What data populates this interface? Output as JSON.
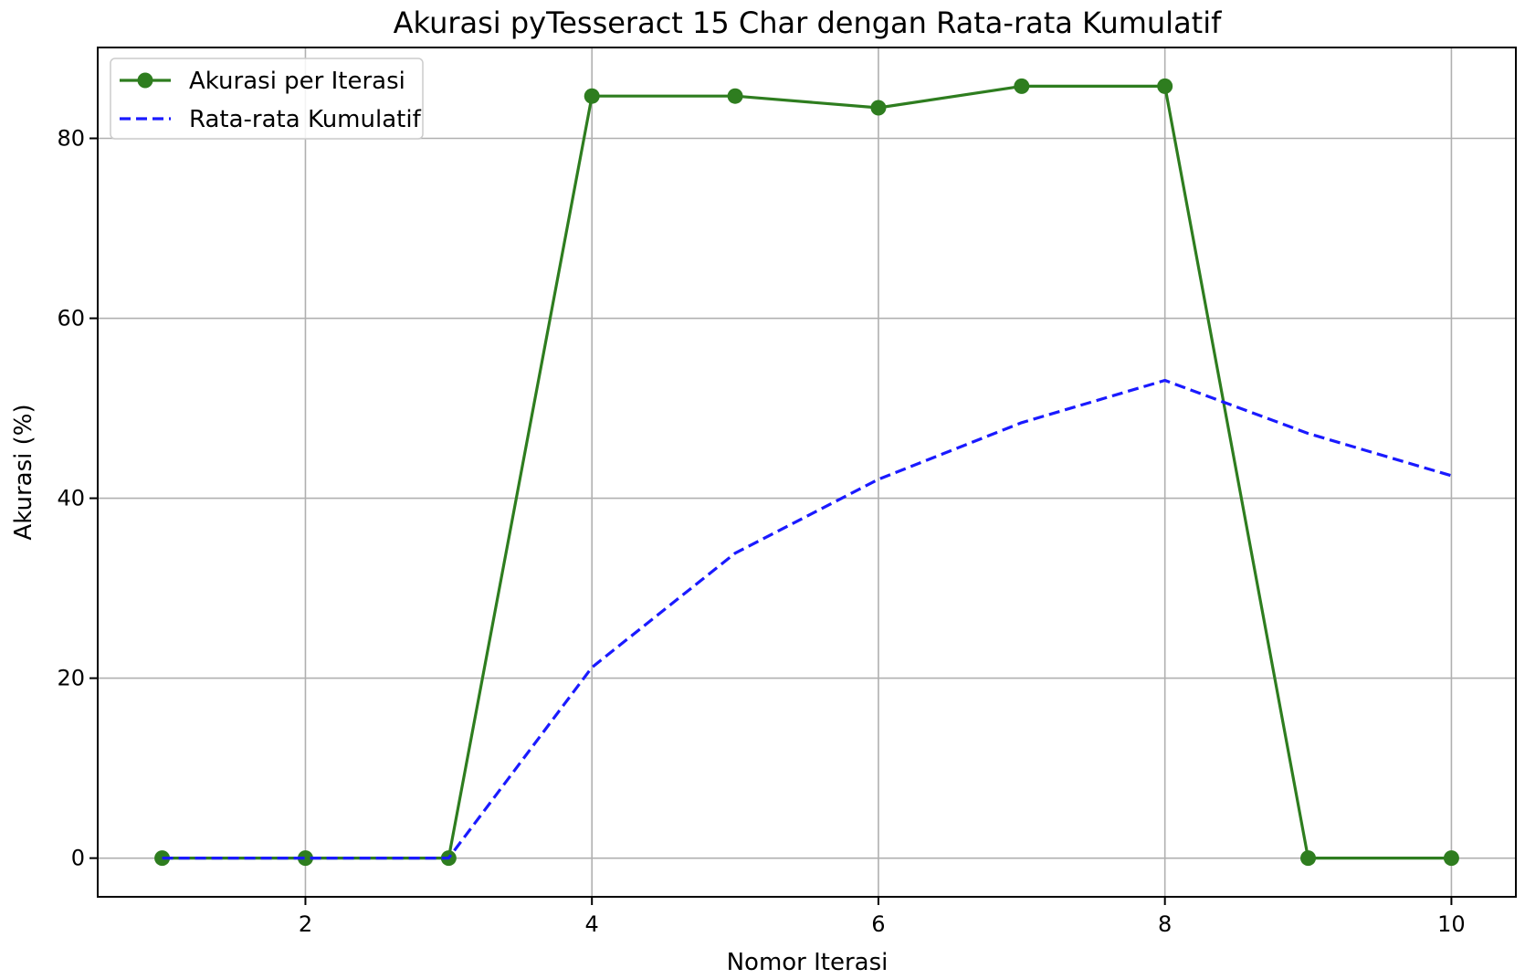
{
  "chart_data": {
    "type": "line",
    "title": "Akurasi pyTesseract 15 Char dengan Rata-rata Kumulatif",
    "xlabel": "Nomor Iterasi",
    "ylabel": "Akurasi (%)",
    "x": [
      1,
      2,
      3,
      4,
      5,
      6,
      7,
      8,
      9,
      10
    ],
    "xlim": [
      0.55,
      10.45
    ],
    "ylim": [
      -4.3,
      90.1
    ],
    "xticks": [
      2,
      4,
      6,
      8,
      10
    ],
    "yticks": [
      0,
      20,
      40,
      60,
      80
    ],
    "grid": true,
    "legend_position": "upper-left",
    "series": [
      {
        "name": "Akurasi per Iterasi",
        "color": "#2e7d1f",
        "style": "solid",
        "marker": "circle",
        "values": [
          0,
          0,
          0,
          84.7,
          84.7,
          83.4,
          85.8,
          85.8,
          0,
          0
        ]
      },
      {
        "name": "Rata-rata Kumulatif",
        "color": "#1a1aff",
        "style": "dashed",
        "marker": "none",
        "values": [
          0,
          0,
          0,
          21.2,
          33.9,
          42.1,
          48.4,
          53.1,
          47.2,
          42.5
        ]
      }
    ]
  }
}
